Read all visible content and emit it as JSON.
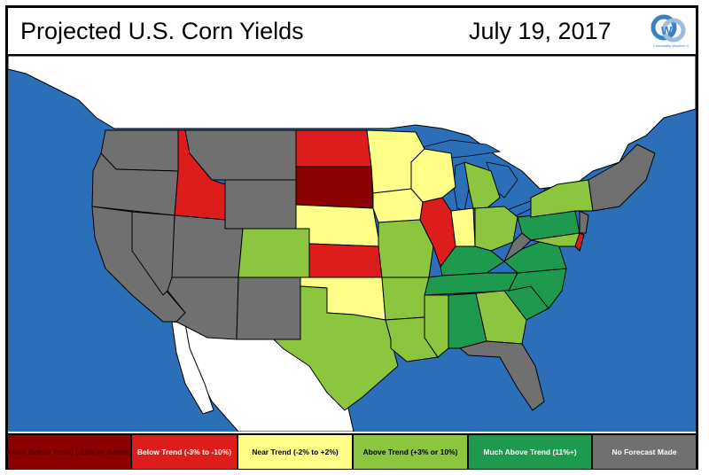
{
  "header": {
    "title": "Projected U.S. Corn Yields",
    "date": "July 19, 2017",
    "logo_text": "GG",
    "logo_subtext": "Commodity Weather Group"
  },
  "colors": {
    "much_below": "#8b0000",
    "below": "#dd1c1c",
    "near": "#ffff88",
    "above": "#8cc63f",
    "much_above": "#1e9a4e",
    "no_forecast": "#707070",
    "water": "#2a6fb8",
    "land_neighbor": "#ffffff"
  },
  "legend": [
    {
      "label": "Much Below Trend (-11% or Below)",
      "category": "much_below",
      "text_color": "#5a0000"
    },
    {
      "label": "Below Trend (-3% to -10%)",
      "category": "below",
      "text_color": "#ffffff"
    },
    {
      "label": "Near Trend (-2% to +2%)",
      "category": "near",
      "text_color": "#000000"
    },
    {
      "label": "Above Trend (+3% or 10%)",
      "category": "above",
      "text_color": "#000000"
    },
    {
      "label": "Much Above Trend (11%+)",
      "category": "much_above",
      "text_color": "#ffffff"
    },
    {
      "label": "No Forecast Made",
      "category": "no_forecast",
      "text_color": "#ffffff"
    }
  ],
  "states": {
    "WA": "no_forecast",
    "OR": "no_forecast",
    "CA": "no_forecast",
    "NV": "no_forecast",
    "ID": "below",
    "MT": "no_forecast",
    "WY": "no_forecast",
    "UT": "no_forecast",
    "AZ": "no_forecast",
    "NM": "no_forecast",
    "CO": "above",
    "ND": "below",
    "SD": "much_below",
    "NE": "near",
    "KS": "below",
    "OK": "near",
    "TX": "above",
    "MN": "near",
    "IA": "near",
    "MO": "above",
    "AR": "above",
    "LA": "above",
    "WI": "near",
    "IL": "below",
    "IN": "near",
    "MI": "above",
    "OH": "above",
    "KY": "much_above",
    "TN": "much_above",
    "MS": "above",
    "AL": "much_above",
    "GA": "above",
    "FL": "no_forecast",
    "SC": "much_above",
    "NC": "much_above",
    "VA": "much_above",
    "WV": "no_forecast",
    "PA": "much_above",
    "NY": "above",
    "MD": "above",
    "DE": "below",
    "NJ": "no_forecast",
    "NE_US": "no_forecast"
  }
}
